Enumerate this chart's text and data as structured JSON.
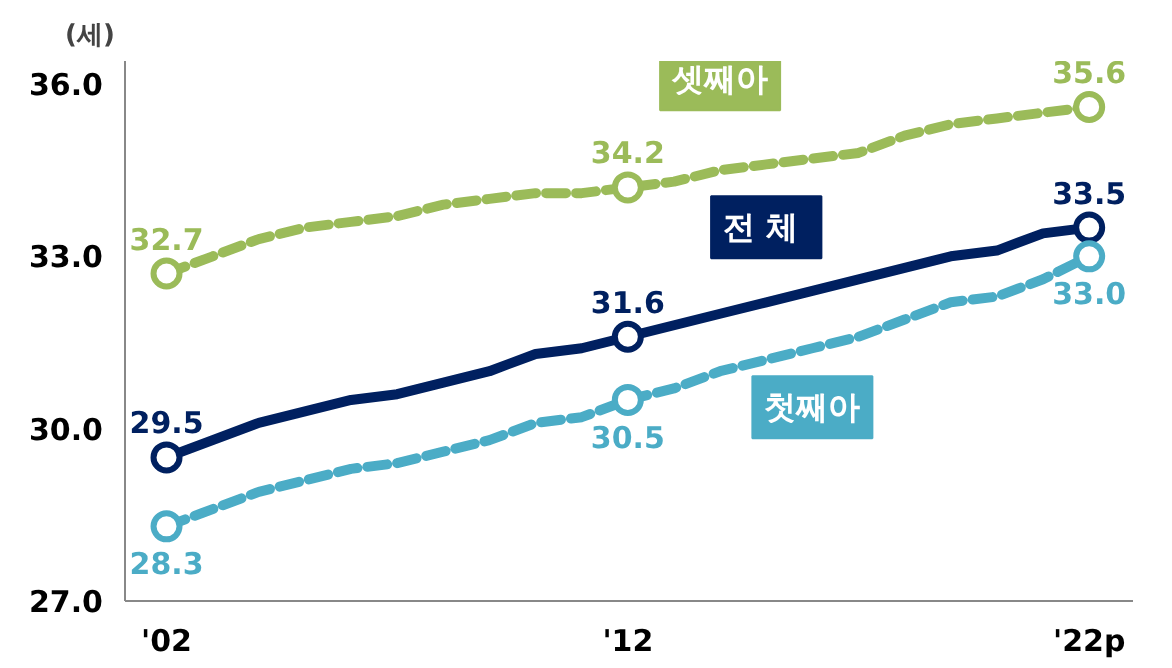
{
  "chart_data": {
    "type": "line",
    "ylabel": "(세)",
    "categories": [
      "'02",
      null,
      null,
      null,
      null,
      null,
      null,
      null,
      null,
      null,
      "'12",
      null,
      null,
      null,
      null,
      null,
      null,
      null,
      null,
      null,
      "'22p"
    ],
    "ylim": [
      27,
      36.4
    ],
    "yticks": [
      {
        "value": 27,
        "label": "27.0"
      },
      {
        "value": 30,
        "label": "30.0"
      },
      {
        "value": 33,
        "label": "33.0"
      },
      {
        "value": 36,
        "label": "36.0"
      }
    ],
    "grid": false,
    "series": [
      {
        "name": "셋째아",
        "color": "#9bbb59",
        "line_style": "dashed",
        "values": [
          32.7,
          33.0,
          33.3,
          33.5,
          33.6,
          33.7,
          33.9,
          34.0,
          34.1,
          34.1,
          34.2,
          34.3,
          34.5,
          34.6,
          34.7,
          34.8,
          35.1,
          35.3,
          35.4,
          35.5,
          35.6
        ],
        "value_labels": [
          "32.7",
          null,
          null,
          null,
          null,
          null,
          null,
          null,
          null,
          null,
          "34.2",
          null,
          null,
          null,
          null,
          null,
          null,
          null,
          null,
          null,
          "35.6"
        ]
      },
      {
        "name": "전  체",
        "color": "#002060",
        "line_style": "solid",
        "values": [
          29.5,
          29.8,
          30.1,
          30.3,
          30.5,
          30.6,
          30.8,
          31.0,
          31.3,
          31.4,
          31.6,
          31.8,
          32.0,
          32.2,
          32.4,
          32.6,
          32.8,
          33.0,
          33.1,
          33.4,
          33.5
        ],
        "value_labels": [
          "29.5",
          null,
          null,
          null,
          null,
          null,
          null,
          null,
          null,
          null,
          "31.6",
          null,
          null,
          null,
          null,
          null,
          null,
          null,
          null,
          null,
          "33.5"
        ]
      },
      {
        "name": "첫째아",
        "color": "#4bacc6",
        "line_style": "dashed",
        "values": [
          28.3,
          28.6,
          28.9,
          29.1,
          29.3,
          29.4,
          29.6,
          29.8,
          30.1,
          30.2,
          30.5,
          30.7,
          31.0,
          31.2,
          31.4,
          31.6,
          31.9,
          32.2,
          32.3,
          32.6,
          33.0
        ],
        "value_labels": [
          "28.3",
          null,
          null,
          null,
          null,
          null,
          null,
          null,
          null,
          null,
          "30.5",
          null,
          null,
          null,
          null,
          null,
          null,
          null,
          null,
          null,
          "33.0"
        ]
      }
    ]
  }
}
